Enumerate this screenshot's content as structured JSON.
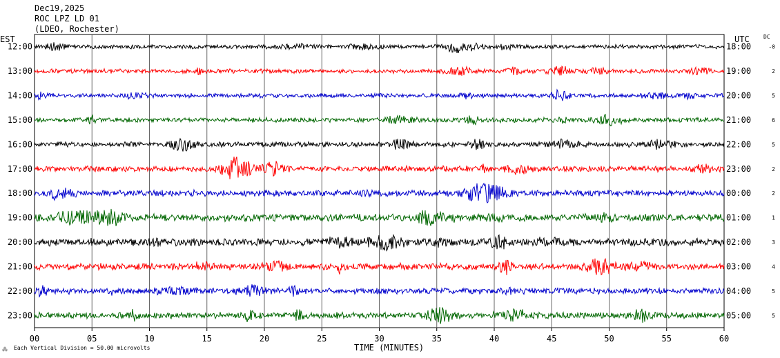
{
  "header": {
    "date": "Dec19,2025",
    "station": "ROC LPZ LD 01",
    "network": "(LDEO, Rochester)",
    "left_tz": "EST",
    "right_tz": "UTC",
    "dc_label": "DC"
  },
  "footer": {
    "xlabel": "TIME (MINUTES)",
    "scale_note": "Each Vertical Division =   50.00 microvolts"
  },
  "chart_data": {
    "type": "line",
    "title": "",
    "xlabel": "TIME (MINUTES)",
    "ylabel": "",
    "xlim": [
      0,
      60
    ],
    "x_ticks": [
      "00",
      "05",
      "10",
      "15",
      "20",
      "25",
      "30",
      "35",
      "40",
      "45",
      "50",
      "55",
      "60"
    ],
    "grid": true,
    "colors": [
      "#000000",
      "#ff0000",
      "#0000cc",
      "#006600"
    ],
    "series": [
      {
        "left_label": "12:00",
        "right_label": "18:00",
        "dc": "-0",
        "color": "#000000",
        "amplitude": 0.45
      },
      {
        "left_label": "13:00",
        "right_label": "19:00",
        "dc": "2",
        "color": "#ff0000",
        "amplitude": 0.45
      },
      {
        "left_label": "14:00",
        "right_label": "20:00",
        "dc": "5",
        "color": "#0000cc",
        "amplitude": 0.45
      },
      {
        "left_label": "15:00",
        "right_label": "21:00",
        "dc": "6",
        "color": "#006600",
        "amplitude": 0.5
      },
      {
        "left_label": "16:00",
        "right_label": "22:00",
        "dc": "5",
        "color": "#000000",
        "amplitude": 0.55
      },
      {
        "left_label": "17:00",
        "right_label": "23:00",
        "dc": "2",
        "color": "#ff0000",
        "amplitude": 0.6
      },
      {
        "left_label": "18:00",
        "right_label": "00:00",
        "dc": "2",
        "color": "#0000cc",
        "amplitude": 0.65
      },
      {
        "left_label": "19:00",
        "right_label": "01:00",
        "dc": "1",
        "color": "#006600",
        "amplitude": 0.75
      },
      {
        "left_label": "20:00",
        "right_label": "02:00",
        "dc": "3",
        "color": "#000000",
        "amplitude": 0.8
      },
      {
        "left_label": "21:00",
        "right_label": "03:00",
        "dc": "4",
        "color": "#ff0000",
        "amplitude": 0.7
      },
      {
        "left_label": "22:00",
        "right_label": "04:00",
        "dc": "5",
        "color": "#0000cc",
        "amplitude": 0.65
      },
      {
        "left_label": "23:00",
        "right_label": "05:00",
        "dc": "5",
        "color": "#006600",
        "amplitude": 0.65
      }
    ]
  }
}
